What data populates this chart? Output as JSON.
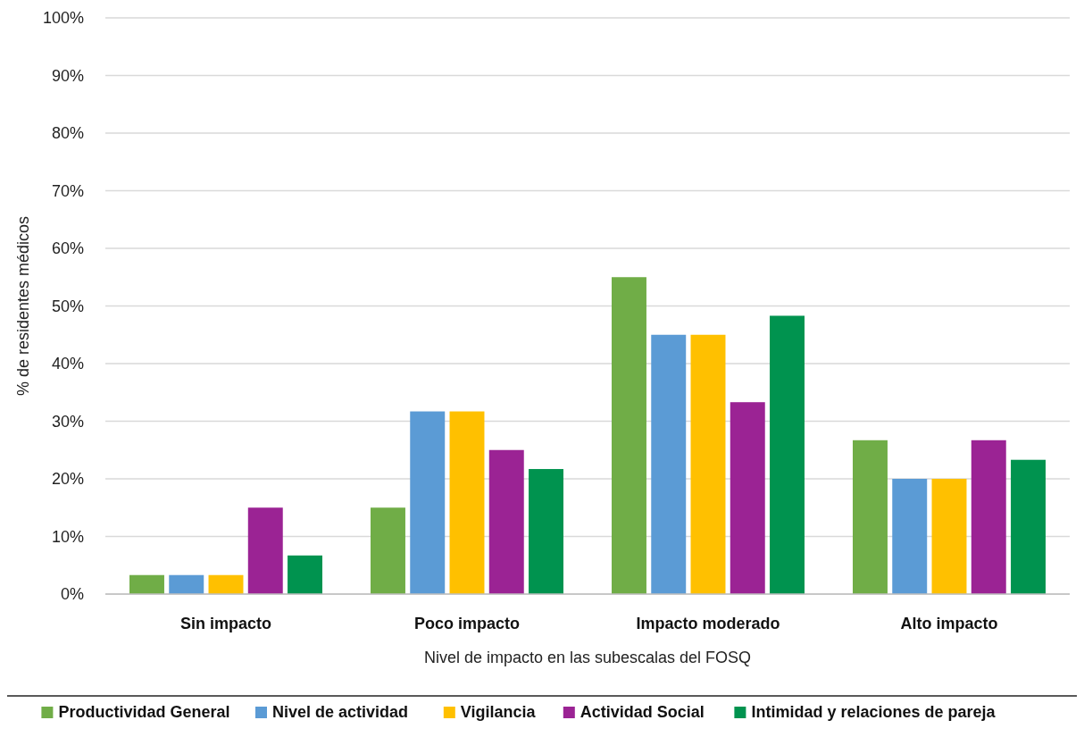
{
  "chart_data": {
    "type": "bar",
    "xlabel": "Nivel de impacto en las subescalas del FOSQ",
    "ylabel": "% de residentes médicos",
    "categories": [
      "Sin impacto",
      "Poco impacto",
      "Impacto moderado",
      "Alto impacto"
    ],
    "series": [
      {
        "name": "Productividad General",
        "color": "#70ad47",
        "values": [
          3.3,
          15,
          55,
          26.7
        ]
      },
      {
        "name": "Nivel de actividad",
        "color": "#5b9bd5",
        "values": [
          3.3,
          31.7,
          45,
          20
        ]
      },
      {
        "name": "Vigilancia",
        "color": "#ffc000",
        "values": [
          3.3,
          31.7,
          45,
          20
        ]
      },
      {
        "name": "Actividad Social",
        "color": "#9b2394",
        "values": [
          15,
          25,
          33.3,
          26.7
        ]
      },
      {
        "name": "Intimidad y relaciones de pareja",
        "color": "#00934f",
        "values": [
          6.7,
          21.7,
          48.3,
          23.3
        ]
      }
    ],
    "ylim": [
      0,
      100
    ],
    "yticks": [
      {
        "value": 0,
        "label": "0%"
      },
      {
        "value": 10,
        "label": "10%"
      },
      {
        "value": 20,
        "label": "20%"
      },
      {
        "value": 30,
        "label": "30%"
      },
      {
        "value": 40,
        "label": "40%"
      },
      {
        "value": 50,
        "label": "50%"
      },
      {
        "value": 60,
        "label": "60%"
      },
      {
        "value": 70,
        "label": "70%"
      },
      {
        "value": 80,
        "label": "80%"
      },
      {
        "value": 90,
        "label": "90%"
      },
      {
        "value": 100,
        "label": "100%"
      }
    ],
    "grid": "y",
    "legend": "bottom"
  }
}
